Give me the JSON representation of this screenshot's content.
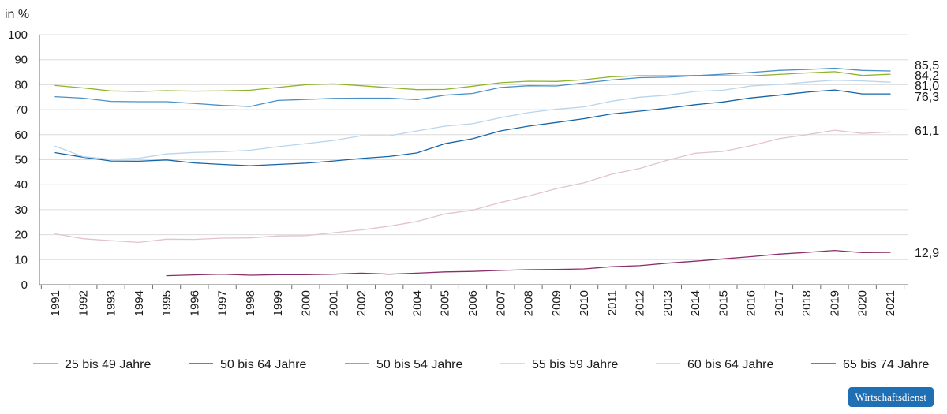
{
  "chart_data": {
    "type": "line",
    "ylabel": "in %",
    "ylim": [
      0,
      100
    ],
    "yticks": [
      0,
      10,
      20,
      30,
      40,
      50,
      60,
      70,
      80,
      90,
      100
    ],
    "grid": true,
    "legend_position": "bottom",
    "x": [
      1991,
      1992,
      1993,
      1994,
      1995,
      1996,
      1997,
      1998,
      1999,
      2000,
      2001,
      2002,
      2003,
      2004,
      2005,
      2006,
      2007,
      2008,
      2009,
      2010,
      2011,
      2012,
      2013,
      2014,
      2015,
      2016,
      2017,
      2018,
      2019,
      2020,
      2021
    ],
    "series": [
      {
        "name": "25 bis 49 Jahre",
        "color": "#8db42a",
        "end_label": "84,2",
        "values": [
          79.7,
          78.7,
          77.5,
          77.3,
          77.6,
          77.4,
          77.5,
          77.8,
          78.9,
          80.0,
          80.3,
          79.6,
          78.8,
          78.0,
          78.1,
          79.4,
          80.8,
          81.4,
          81.3,
          82.0,
          83.2,
          83.6,
          83.6,
          83.7,
          83.6,
          83.5,
          84.1,
          84.7,
          85.2,
          83.7,
          84.2
        ]
      },
      {
        "name": "50 bis 64 Jahre",
        "color": "#1565a8",
        "end_label": "",
        "values": [
          52.8,
          51.0,
          49.5,
          49.4,
          49.9,
          48.7,
          48.1,
          47.6,
          48.1,
          48.6,
          49.5,
          50.5,
          51.3,
          52.7,
          56.4,
          58.4,
          61.5,
          63.4,
          64.9,
          66.4,
          68.3,
          69.4,
          70.6,
          72.0,
          73.1,
          74.7,
          75.8,
          77.0,
          77.9,
          76.3,
          76.3
        ]
      },
      {
        "name": "50 bis 54 Jahre",
        "color": "#4a90c8",
        "end_label": "85,5",
        "values": [
          75.2,
          74.6,
          73.3,
          73.2,
          73.2,
          72.5,
          71.7,
          71.3,
          73.7,
          74.1,
          74.5,
          74.6,
          74.6,
          74.0,
          75.8,
          76.5,
          78.9,
          79.6,
          79.5,
          80.7,
          81.9,
          82.8,
          83.0,
          83.6,
          84.2,
          84.9,
          85.7,
          86.1,
          86.6,
          85.7,
          85.5
        ]
      },
      {
        "name": "55 bis 59 Jahre",
        "color": "#b9d5ec",
        "end_label": "81,0",
        "values": [
          55.4,
          51.2,
          50.2,
          50.6,
          52.3,
          52.9,
          53.2,
          53.8,
          55.2,
          56.4,
          57.7,
          59.6,
          59.6,
          61.5,
          63.4,
          64.4,
          66.8,
          68.8,
          70.2,
          71.1,
          73.4,
          75.0,
          75.8,
          77.3,
          77.8,
          79.5,
          80.1,
          81.0,
          81.8,
          81.5,
          81.0
        ]
      },
      {
        "name": "60 bis 64 Jahre",
        "color": "#e3c3cb",
        "end_label": "61,1",
        "values": [
          20.3,
          18.4,
          17.6,
          16.9,
          18.2,
          18.1,
          18.6,
          18.7,
          19.5,
          19.6,
          20.8,
          21.9,
          23.4,
          25.3,
          28.3,
          29.8,
          32.9,
          35.4,
          38.4,
          40.8,
          44.2,
          46.5,
          49.8,
          52.6,
          53.3,
          55.6,
          58.4,
          60.0,
          61.8,
          60.5,
          61.1
        ]
      },
      {
        "name": "65 bis 74 Jahre",
        "color": "#8a2f6b",
        "end_label": "12,9",
        "values": [
          null,
          null,
          null,
          null,
          3.6,
          3.9,
          4.2,
          3.8,
          4.0,
          4.0,
          4.2,
          4.6,
          4.2,
          4.6,
          5.1,
          5.3,
          5.7,
          6.0,
          6.1,
          6.3,
          7.2,
          7.6,
          8.6,
          9.4,
          10.3,
          11.2,
          12.2,
          12.9,
          13.7,
          12.8,
          12.9
        ]
      }
    ],
    "extra_end_labels": [
      {
        "text": "76,3",
        "series_ref": "50 bis 64 Jahre"
      }
    ]
  },
  "branding": {
    "badge_text": "Wirtschaftsdienst"
  }
}
